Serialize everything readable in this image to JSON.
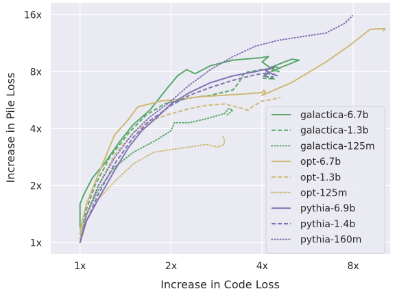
{
  "chart_data": {
    "type": "line",
    "title": "",
    "xlabel": "Increase in Code Loss",
    "ylabel": "Increase in Pile Loss",
    "xscale": "log2",
    "yscale": "log2",
    "xlim": [
      0.8,
      10.6
    ],
    "ylim": [
      0.87,
      18.5
    ],
    "xticks": [
      1,
      2,
      4,
      8
    ],
    "xtick_labels": [
      "1x",
      "2x",
      "4x",
      "8x"
    ],
    "yticks": [
      1,
      2,
      4,
      8,
      16
    ],
    "ytick_labels": [
      "1x",
      "2x",
      "4x",
      "8x",
      "16x"
    ],
    "grid": true,
    "legend_position": "lower-right",
    "background": "#eaeaf2",
    "series": [
      {
        "name": "galactica-6.7b",
        "color": "#55a868",
        "dash": "solid",
        "points": [
          [
            1.0,
            1.2
          ],
          [
            1.0,
            1.6
          ],
          [
            1.03,
            1.8
          ],
          [
            1.1,
            2.2
          ],
          [
            1.2,
            2.6
          ],
          [
            1.35,
            3.4
          ],
          [
            1.5,
            4.2
          ],
          [
            1.7,
            5.0
          ],
          [
            1.95,
            6.6
          ],
          [
            2.1,
            7.6
          ],
          [
            2.25,
            8.2
          ],
          [
            2.4,
            7.8
          ],
          [
            2.7,
            8.6
          ],
          [
            3.2,
            9.2
          ],
          [
            4.0,
            9.5
          ],
          [
            4.2,
            9.6
          ],
          [
            4.0,
            9.0
          ],
          [
            4.25,
            8.4
          ],
          [
            5.0,
            9.3
          ],
          [
            5.3,
            9.2
          ],
          [
            4.6,
            8.4
          ],
          [
            4.3,
            8.0
          ],
          [
            4.4,
            8.5
          ],
          [
            4.6,
            8.3
          ]
        ]
      },
      {
        "name": "galactica-1.3b",
        "color": "#55a868",
        "dash": "dashed",
        "points": [
          [
            1.0,
            1.1
          ],
          [
            1.05,
            1.5
          ],
          [
            1.12,
            2.0
          ],
          [
            1.25,
            2.8
          ],
          [
            1.45,
            3.8
          ],
          [
            1.65,
            4.7
          ],
          [
            1.9,
            5.4
          ],
          [
            2.3,
            5.8
          ],
          [
            2.7,
            6.0
          ],
          [
            3.2,
            6.4
          ],
          [
            3.35,
            7.0
          ],
          [
            3.5,
            7.9
          ],
          [
            4.0,
            8.2
          ],
          [
            4.3,
            8.3
          ],
          [
            4.55,
            8.0
          ],
          [
            4.3,
            8.15
          ],
          [
            4.1,
            7.6
          ],
          [
            4.4,
            7.3
          ],
          [
            4.0,
            7.4
          ],
          [
            4.15,
            8.0
          ],
          [
            4.35,
            7.4
          ]
        ]
      },
      {
        "name": "galactica-125m",
        "color": "#55a868",
        "dash": "dotted",
        "points": [
          [
            1.0,
            1.05
          ],
          [
            1.05,
            1.4
          ],
          [
            1.15,
            1.9
          ],
          [
            1.3,
            2.5
          ],
          [
            1.5,
            3.0
          ],
          [
            1.8,
            3.5
          ],
          [
            2.0,
            3.9
          ],
          [
            2.05,
            4.3
          ],
          [
            2.3,
            4.3
          ],
          [
            2.6,
            4.5
          ],
          [
            3.0,
            4.8
          ],
          [
            3.1,
            5.1
          ],
          [
            3.2,
            5.0
          ],
          [
            3.05,
            4.7
          ]
        ]
      },
      {
        "name": "opt-6.7b",
        "color": "#ccb974",
        "dash": "solid",
        "points": [
          [
            1.0,
            1.15
          ],
          [
            1.05,
            1.6
          ],
          [
            1.15,
            2.3
          ],
          [
            1.3,
            3.7
          ],
          [
            1.45,
            4.5
          ],
          [
            1.55,
            5.2
          ],
          [
            1.7,
            5.4
          ],
          [
            1.85,
            5.6
          ],
          [
            2.1,
            5.7
          ],
          [
            2.5,
            5.9
          ],
          [
            3.0,
            6.0
          ],
          [
            3.5,
            6.1
          ],
          [
            4.0,
            6.2
          ],
          [
            4.05,
            6.4
          ],
          [
            4.1,
            6.25
          ],
          [
            4.0,
            6.0
          ],
          [
            5.0,
            7.0
          ],
          [
            6.5,
            9.0
          ],
          [
            7.9,
            11.2
          ],
          [
            9.1,
            13.4
          ],
          [
            10.2,
            13.5
          ],
          [
            10.05,
            13.1
          ]
        ]
      },
      {
        "name": "opt-1.3b",
        "color": "#ccb974",
        "dash": "dashed",
        "points": [
          [
            1.0,
            1.1
          ],
          [
            1.05,
            1.4
          ],
          [
            1.15,
            2.0
          ],
          [
            1.3,
            2.9
          ],
          [
            1.5,
            3.8
          ],
          [
            1.7,
            4.4
          ],
          [
            2.0,
            4.8
          ],
          [
            2.3,
            5.1
          ],
          [
            2.6,
            5.3
          ],
          [
            3.0,
            5.4
          ],
          [
            3.3,
            5.2
          ],
          [
            3.6,
            5.0
          ],
          [
            3.7,
            5.2
          ],
          [
            4.0,
            5.6
          ],
          [
            4.3,
            5.7
          ],
          [
            4.6,
            5.85
          ]
        ]
      },
      {
        "name": "opt-125m",
        "color": "#ccb974",
        "dash": "dotted",
        "points": [
          [
            1.0,
            1.05
          ],
          [
            1.05,
            1.3
          ],
          [
            1.15,
            1.7
          ],
          [
            1.3,
            2.1
          ],
          [
            1.5,
            2.6
          ],
          [
            1.75,
            3.0
          ],
          [
            2.0,
            3.1
          ],
          [
            2.3,
            3.2
          ],
          [
            2.6,
            3.3
          ],
          [
            2.85,
            3.2
          ],
          [
            3.0,
            3.3
          ],
          [
            3.0,
            3.5
          ],
          [
            2.95,
            3.7
          ]
        ]
      },
      {
        "name": "pythia-6.9b",
        "color": "#8172b3",
        "dash": "solid",
        "points": [
          [
            1.0,
            1.0
          ],
          [
            1.05,
            1.3
          ],
          [
            1.15,
            1.7
          ],
          [
            1.3,
            2.4
          ],
          [
            1.45,
            3.2
          ],
          [
            1.6,
            3.9
          ],
          [
            1.8,
            4.6
          ],
          [
            2.0,
            5.4
          ],
          [
            2.3,
            6.2
          ],
          [
            2.7,
            7.0
          ],
          [
            3.2,
            7.6
          ],
          [
            3.8,
            8.0
          ],
          [
            4.2,
            8.3
          ],
          [
            4.4,
            8.5
          ],
          [
            4.1,
            8.1
          ],
          [
            4.3,
            7.8
          ],
          [
            4.5,
            7.6
          ]
        ]
      },
      {
        "name": "pythia-1.4b",
        "color": "#8172b3",
        "dash": "dashed",
        "points": [
          [
            1.0,
            1.0
          ],
          [
            1.05,
            1.3
          ],
          [
            1.15,
            1.8
          ],
          [
            1.3,
            2.6
          ],
          [
            1.5,
            3.6
          ],
          [
            1.7,
            4.4
          ],
          [
            2.0,
            5.3
          ],
          [
            2.3,
            6.0
          ],
          [
            2.7,
            6.6
          ],
          [
            3.2,
            7.2
          ],
          [
            3.8,
            7.7
          ],
          [
            4.2,
            7.9
          ],
          [
            4.05,
            7.6
          ],
          [
            4.3,
            7.4
          ],
          [
            4.4,
            7.8
          ]
        ]
      },
      {
        "name": "pythia-160m",
        "color": "#8172b3",
        "dash": "dotted",
        "points": [
          [
            1.0,
            1.0
          ],
          [
            1.05,
            1.4
          ],
          [
            1.15,
            2.0
          ],
          [
            1.3,
            2.8
          ],
          [
            1.5,
            3.8
          ],
          [
            1.7,
            4.6
          ],
          [
            2.0,
            5.6
          ],
          [
            2.3,
            6.8
          ],
          [
            2.7,
            8.2
          ],
          [
            3.2,
            9.6
          ],
          [
            3.8,
            10.9
          ],
          [
            4.5,
            11.7
          ],
          [
            5.5,
            12.3
          ],
          [
            6.5,
            12.8
          ],
          [
            7.5,
            14.4
          ],
          [
            7.95,
            15.8
          ]
        ]
      }
    ]
  }
}
